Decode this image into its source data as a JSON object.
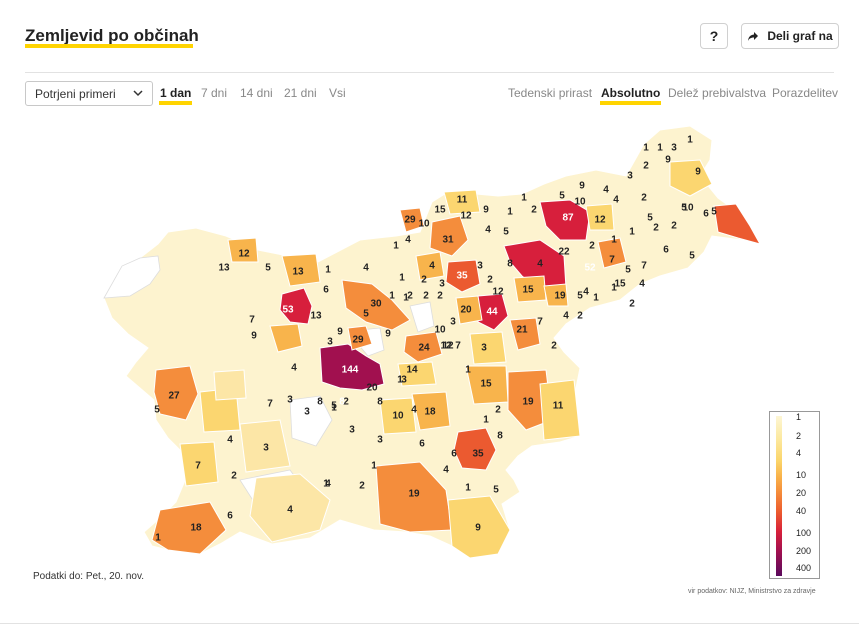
{
  "header": {
    "title": "Zemljevid po občinah",
    "help_label": "?",
    "share_label": "Deli graf na"
  },
  "controls": {
    "select_value": "Potrjeni primeri",
    "periods": [
      "1 dan",
      "7 dni",
      "14 dni",
      "21 dni",
      "Vsi"
    ],
    "active_period": "1 dan",
    "modes": [
      "Tedenski prirast",
      "Absolutno",
      "Delež prebivalstva",
      "Porazdelitev"
    ],
    "active_mode": "Absolutno"
  },
  "legend": {
    "ticks": [
      "1",
      "2",
      "4",
      "10",
      "20",
      "40",
      "100",
      "200",
      "400"
    ]
  },
  "footer": {
    "data_as_of": "Podatki do: Pet., 20. nov.",
    "source": "vir podatkov: NIJZ, Ministrstvo za zdravje"
  },
  "colors": {
    "accent": "#ffd400",
    "scale": [
      "#fdf3cf",
      "#fce6a6",
      "#fbd670",
      "#f8b44c",
      "#f48d3c",
      "#eb5a30",
      "#d71f3c",
      "#a1104f",
      "#5a0a5c"
    ]
  },
  "map_labels": [
    "1",
    "1",
    "3",
    "1",
    "9",
    "2",
    "9",
    "9",
    "4",
    "3",
    "10",
    "5",
    "1",
    "4",
    "2",
    "10",
    "5",
    "6",
    "5",
    "15",
    "11",
    "12",
    "9",
    "2",
    "87",
    "12",
    "29",
    "10",
    "1",
    "31",
    "4",
    "5",
    "1",
    "2",
    "2",
    "5",
    "1",
    "12",
    "2",
    "7",
    "22",
    "4",
    "52",
    "5",
    "7",
    "6",
    "5",
    "4",
    "2",
    "1",
    "35",
    "3",
    "8",
    "4",
    "1",
    "13",
    "5",
    "13",
    "1",
    "4",
    "1",
    "2",
    "3",
    "1",
    "4",
    "15",
    "5",
    "19",
    "4",
    "1",
    "2",
    "6",
    "30",
    "1",
    "2",
    "2",
    "2",
    "20",
    "12",
    "15",
    "44",
    "21",
    "7",
    "4",
    "2",
    "53",
    "13",
    "7",
    "10",
    "3",
    "3",
    "9",
    "29",
    "12",
    "24",
    "12",
    "7",
    "3",
    "20",
    "2",
    "4",
    "9",
    "144",
    "14",
    "1",
    "15",
    "5",
    "3",
    "1",
    "9",
    "4",
    "8",
    "18",
    "19",
    "11",
    "2",
    "27",
    "5",
    "7",
    "4",
    "3",
    "3",
    "8",
    "10",
    "6",
    "1",
    "2",
    "5",
    "3",
    "1",
    "3",
    "4",
    "3",
    "8",
    "6",
    "35",
    "8",
    "1",
    "7",
    "2",
    "4",
    "1",
    "2",
    "1",
    "5",
    "19",
    "18",
    "6",
    "4",
    "9",
    "1"
  ]
}
